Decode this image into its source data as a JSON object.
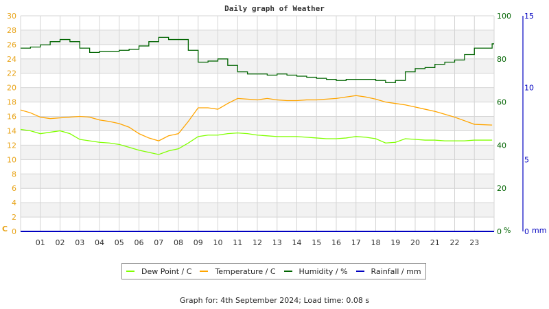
{
  "title": "Daily graph of Weather",
  "footer": "Graph for: 4th September 2024; Load time: 0.08 s",
  "colors": {
    "dew_point": "#80ff00",
    "temperature": "#ffa500",
    "humidity": "#006400",
    "rainfall": "#0000c0",
    "left_axis": "#e8a317",
    "humidity_axis": "#006400",
    "rain_axis": "#0000c0"
  },
  "legend": [
    {
      "label": "Dew Point / C",
      "color": "#80ff00"
    },
    {
      "label": "Temperature / C",
      "color": "#ffa500"
    },
    {
      "label": "Humidity / %",
      "color": "#006400"
    },
    {
      "label": "Rainfall / mm",
      "color": "#0000c0"
    }
  ],
  "axes": {
    "left_unit": "C",
    "humidity_unit": "%",
    "rain_unit": "mm"
  },
  "chart_data": {
    "type": "line",
    "title": "Daily graph of Weather",
    "xlabel": "",
    "x_ticks": [
      "01",
      "02",
      "03",
      "04",
      "05",
      "06",
      "07",
      "08",
      "09",
      "10",
      "11",
      "12",
      "13",
      "14",
      "15",
      "16",
      "17",
      "18",
      "19",
      "20",
      "21",
      "22",
      "23"
    ],
    "x_range_hours": [
      0,
      24
    ],
    "y_left": {
      "label": "C",
      "ticks": [
        0,
        2,
        4,
        6,
        8,
        10,
        12,
        14,
        16,
        18,
        20,
        22,
        24,
        26,
        28,
        30
      ],
      "range": [
        0,
        30
      ]
    },
    "y_right_humidity": {
      "label": "%",
      "ticks": [
        0,
        20,
        40,
        60,
        80,
        100
      ],
      "range": [
        0,
        100
      ]
    },
    "y_right_rain": {
      "label": "mm",
      "ticks": [
        0,
        5,
        10,
        15
      ],
      "range": [
        0,
        15
      ]
    },
    "grid": true,
    "legend_position": "bottom",
    "x": [
      0,
      0.5,
      1,
      1.5,
      2,
      2.5,
      3,
      3.5,
      4,
      4.5,
      5,
      5.5,
      6,
      6.5,
      7,
      7.5,
      8,
      8.5,
      9,
      9.5,
      10,
      10.5,
      11,
      11.5,
      12,
      12.5,
      13,
      13.5,
      14,
      14.5,
      15,
      15.5,
      16,
      16.5,
      17,
      17.5,
      18,
      18.5,
      19,
      19.5,
      20,
      20.5,
      21,
      21.5,
      22,
      22.5,
      23,
      23.9
    ],
    "series": [
      {
        "name": "Dew Point / C",
        "axis": "left",
        "values": [
          14.2,
          14.0,
          13.6,
          13.8,
          14.0,
          13.6,
          12.8,
          12.6,
          12.4,
          12.3,
          12.1,
          11.7,
          11.3,
          11.0,
          10.7,
          11.2,
          11.5,
          12.3,
          13.2,
          13.4,
          13.4,
          13.6,
          13.7,
          13.6,
          13.4,
          13.3,
          13.2,
          13.2,
          13.2,
          13.1,
          13.0,
          12.9,
          12.9,
          13.0,
          13.2,
          13.1,
          12.9,
          12.3,
          12.4,
          12.9,
          12.8,
          12.7,
          12.7,
          12.6,
          12.6,
          12.6,
          12.7,
          12.7
        ]
      },
      {
        "name": "Temperature / C",
        "axis": "left",
        "values": [
          16.9,
          16.5,
          15.9,
          15.7,
          15.8,
          15.9,
          16.0,
          15.9,
          15.5,
          15.3,
          15.0,
          14.5,
          13.6,
          13.0,
          12.6,
          13.3,
          13.6,
          15.3,
          17.2,
          17.2,
          17.0,
          17.8,
          18.5,
          18.4,
          18.3,
          18.5,
          18.3,
          18.2,
          18.2,
          18.3,
          18.3,
          18.4,
          18.5,
          18.7,
          18.9,
          18.7,
          18.4,
          18.0,
          17.8,
          17.6,
          17.3,
          17.0,
          16.7,
          16.3,
          15.9,
          15.4,
          14.9,
          14.8
        ]
      },
      {
        "name": "Humidity / %",
        "axis": "humidity",
        "values": [
          85,
          85.5,
          86.5,
          88,
          89,
          88,
          85,
          83,
          83.5,
          83.5,
          84,
          84.5,
          86,
          88,
          90,
          89,
          89,
          84,
          78.5,
          79,
          80,
          77,
          74,
          73,
          73,
          72.5,
          73,
          72.5,
          72,
          71.5,
          71,
          70.5,
          70,
          70.5,
          70.5,
          70.5,
          70,
          69,
          70,
          74,
          75.5,
          76,
          77.5,
          78.5,
          79.5,
          82,
          85,
          87
        ]
      },
      {
        "name": "Rainfall / mm",
        "axis": "rain",
        "values": [
          0,
          0,
          0,
          0,
          0,
          0,
          0,
          0,
          0,
          0,
          0,
          0,
          0,
          0,
          0,
          0,
          0,
          0,
          0,
          0,
          0,
          0,
          0,
          0,
          0,
          0,
          0,
          0,
          0,
          0,
          0,
          0,
          0,
          0,
          0,
          0,
          0,
          0,
          0,
          0,
          0,
          0,
          0,
          0,
          0,
          0,
          0,
          0
        ]
      }
    ]
  }
}
